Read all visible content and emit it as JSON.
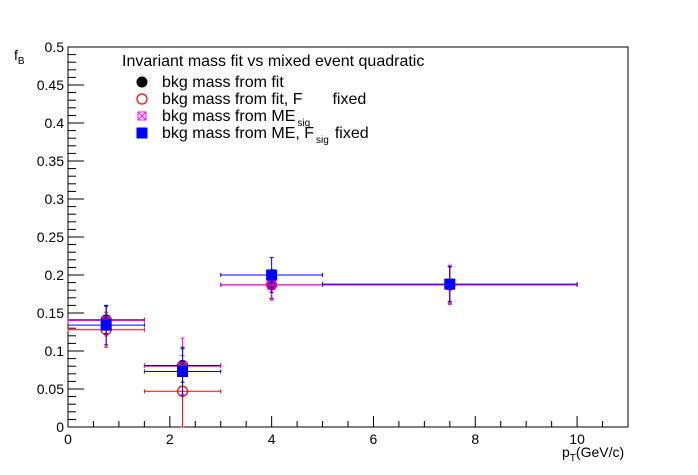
{
  "chart_data": {
    "type": "scatter",
    "title": "Invariant mass fit vs mixed event quadratic",
    "xlabel": "p_T(GeV/c)",
    "xlabel_main": "p",
    "xlabel_sub": "T",
    "xlabel_rest": "(GeV/c)",
    "ylabel": "f_B",
    "ylabel_main": "f",
    "ylabel_sub": "B",
    "xlim": [
      0,
      11
    ],
    "ylim": [
      0,
      0.5
    ],
    "x_ticks": [
      "0",
      "2",
      "4",
      "6",
      "8",
      "10"
    ],
    "y_ticks": [
      "0",
      "0.05",
      "0.1",
      "0.15",
      "0.2",
      "0.25",
      "0.3",
      "0.35",
      "0.4",
      "0.45",
      "0.5"
    ],
    "grid": false,
    "legend_placement": "top-left",
    "series": [
      {
        "name": "bkg mass from fit",
        "label_main": "bkg mass from fit",
        "label_sub": "",
        "label_rest": "",
        "marker": "filled-circle",
        "color": "#000000",
        "x": [
          0.75,
          2.25,
          4.0,
          7.5
        ],
        "y": [
          0.141,
          0.081,
          0.187,
          0.187
        ],
        "xerr": [
          0.75,
          0.75,
          1.0,
          2.5
        ],
        "yerr": [
          0.018,
          0.022,
          0.018,
          0.024
        ]
      },
      {
        "name": "bkg mass from fit, F_sig fixed",
        "label_main": "bkg mass from fit, F",
        "label_sub": "",
        "label_rest": "fixed",
        "marker": "open-circle",
        "color": "#ff0000",
        "x": [
          0.75,
          2.25,
          4.0,
          7.5
        ],
        "y": [
          0.128,
          0.047,
          0.187,
          0.187
        ],
        "xerr": [
          0.75,
          0.75,
          1.0,
          2.5
        ],
        "yerr": [
          0.023,
          0.047,
          0.02,
          0.024
        ]
      },
      {
        "name": "bkg mass from ME_sig",
        "label_main": "bkg mass from ME",
        "label_sub": "sig",
        "label_rest": "",
        "marker": "open-square-x",
        "color": "#ff00ff",
        "x": [
          0.75,
          2.25,
          4.0,
          7.5
        ],
        "y": [
          0.14,
          0.08,
          0.187,
          0.187
        ],
        "xerr": [
          0.75,
          0.75,
          1.0,
          2.5
        ],
        "yerr": [
          0.02,
          0.037,
          0.02,
          0.026
        ]
      },
      {
        "name": "bkg mass from ME, F_sig fixed",
        "label_main": "bkg mass from ME, F",
        "label_sub": "sig",
        "label_rest": "fixed",
        "marker": "filled-square",
        "color": "#0000ff",
        "x": [
          0.75,
          2.25,
          4.0,
          7.5
        ],
        "y": [
          0.134,
          0.073,
          0.2,
          0.188
        ],
        "xerr": [
          0.75,
          0.75,
          1.0,
          2.5
        ],
        "yerr": [
          0.026,
          0.032,
          0.023,
          0.023
        ]
      }
    ]
  }
}
